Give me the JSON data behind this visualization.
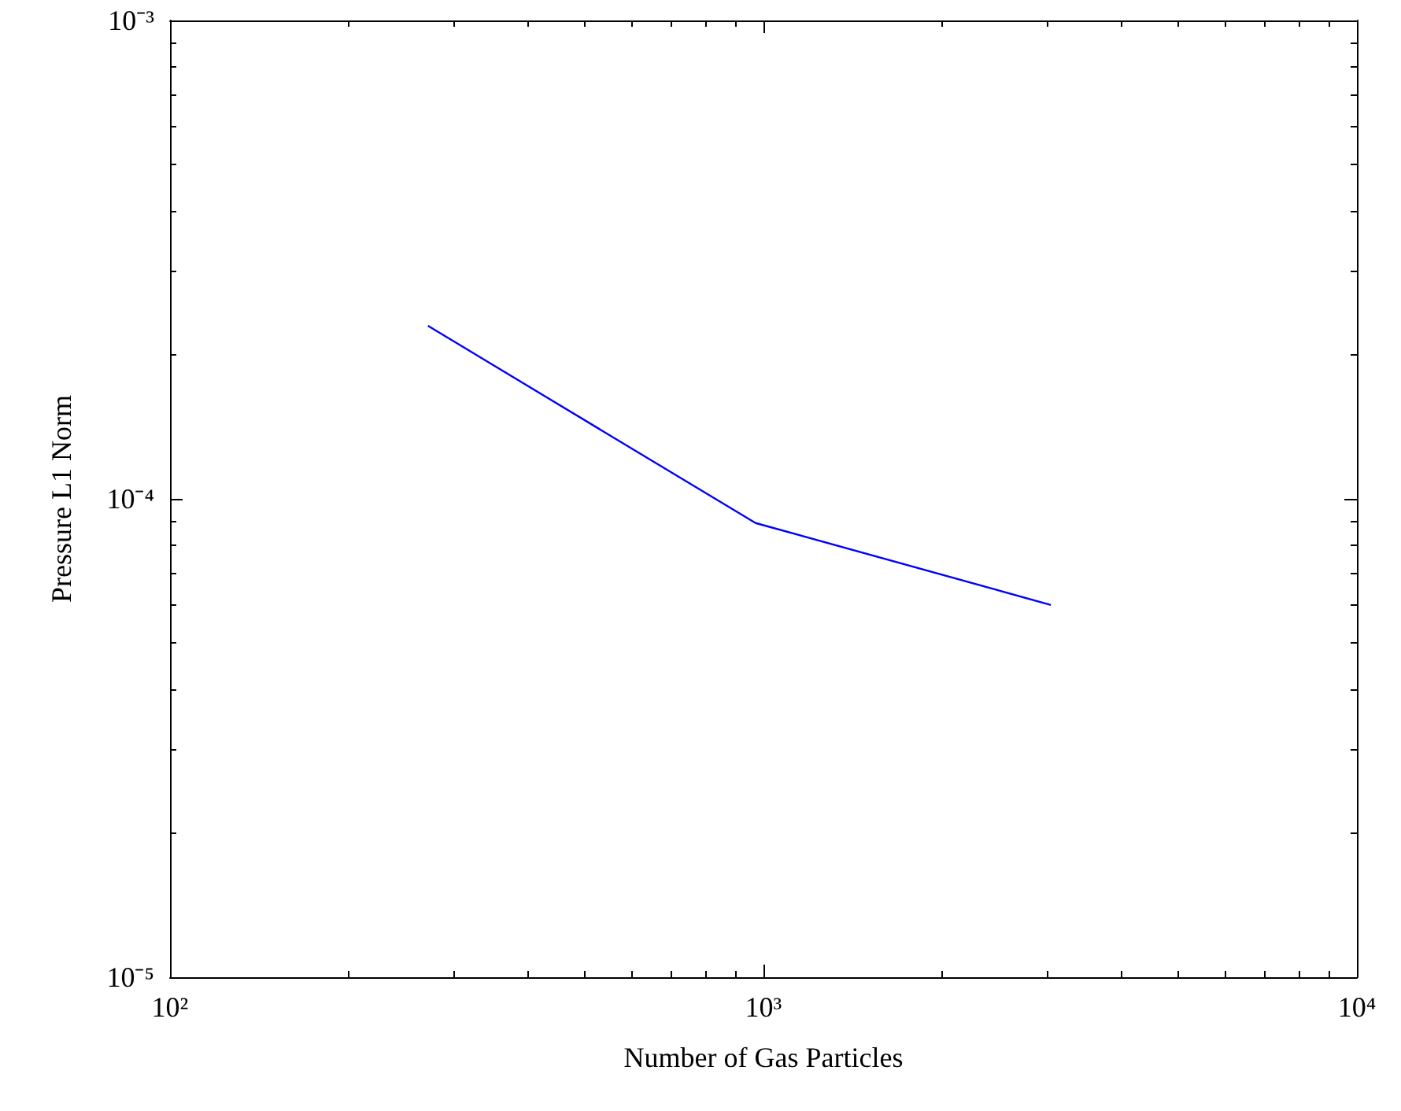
{
  "chart_data": {
    "type": "line",
    "xlabel": "Number of Gas Particles",
    "ylabel": "Pressure L1 Norm",
    "log": "xy",
    "grid": false,
    "marker": "none",
    "line_style": "solid",
    "x": [
      272,
      970,
      3050
    ],
    "series": [
      {
        "color": "#0000ff",
        "values": [
          0.00023,
          8.9e-05,
          6e-05
        ]
      }
    ],
    "xlim": [
      100,
      10000
    ],
    "xticks": [
      {
        "value": 100,
        "label": "10²"
      },
      {
        "value": 1000,
        "label": "10³"
      },
      {
        "value": 10000,
        "label": "10⁴"
      }
    ],
    "ylim": [
      1e-05,
      0.001
    ],
    "yticks": [
      {
        "value": 1e-05,
        "label": "10⁻⁵"
      },
      {
        "value": 0.0001,
        "label": "10⁻⁴"
      },
      {
        "value": 0.001,
        "label": "10⁻³"
      }
    ]
  }
}
